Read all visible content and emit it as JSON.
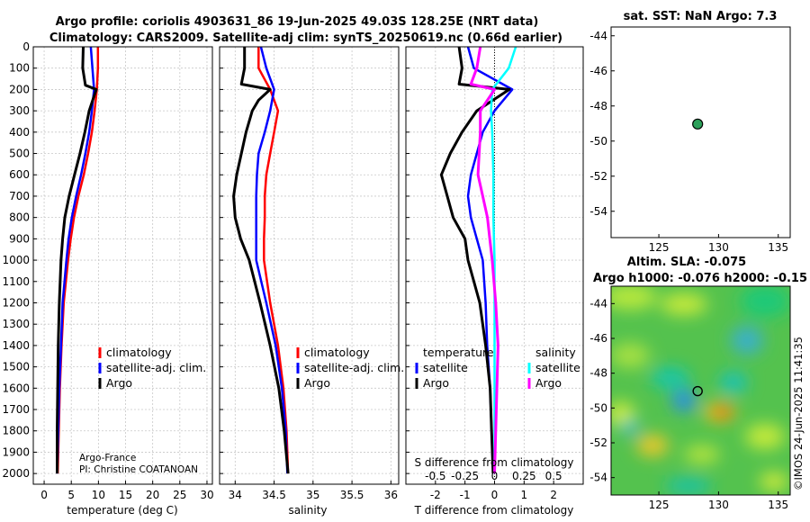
{
  "header": {
    "title_line1": "Argo profile: coriolis 4903631_86 19-Jun-2025 49.03S 128.25E (NRT data)",
    "title_line2": "Climatology: CARS2009. Satellite-adj clim: synTS_20250619.nc (0.66d earlier)"
  },
  "colors": {
    "climatology": "#ff0000",
    "satellite": "#0000ff",
    "argo": "#000000",
    "sal_satellite": "#00ffff",
    "sal_argo": "#ff00ff"
  },
  "credits": {
    "line1": "Argo-France",
    "line2": "PI: Christine COATANOAN"
  },
  "imos_stamp": "©IMOS 24-Jun-2025 11:41:35",
  "chart_data": [
    {
      "id": "temperature",
      "type": "line",
      "xlabel": "temperature (deg C)",
      "ylabel": "",
      "xlim": [
        -2,
        31
      ],
      "ylim": [
        0,
        2050
      ],
      "xticks": [
        0,
        5,
        10,
        15,
        20,
        25,
        30
      ],
      "yticks": [
        0,
        100,
        200,
        300,
        400,
        500,
        600,
        700,
        800,
        900,
        1000,
        1100,
        1200,
        1300,
        1400,
        1500,
        1600,
        1700,
        1800,
        1900,
        2000
      ],
      "legend": [
        "climatology",
        "satellite-adj. clim.",
        "Argo"
      ],
      "series": [
        {
          "name": "climatology",
          "color": "#ff0000",
          "depth": [
            0,
            100,
            200,
            300,
            400,
            500,
            600,
            700,
            800,
            900,
            1000,
            1200,
            1400,
            1600,
            1800,
            2000
          ],
          "values": [
            9.9,
            9.9,
            9.7,
            9.3,
            8.8,
            8.1,
            7.3,
            6.3,
            5.5,
            4.9,
            4.4,
            3.6,
            3.2,
            2.9,
            2.7,
            2.5
          ]
        },
        {
          "name": "satellite-adj. clim.",
          "color": "#0000ff",
          "depth": [
            0,
            100,
            200,
            300,
            400,
            500,
            600,
            700,
            800,
            900,
            1000,
            1200,
            1400,
            1600,
            1800,
            2000
          ],
          "values": [
            8.6,
            8.9,
            9.2,
            8.8,
            8.3,
            7.6,
            6.8,
            5.9,
            5.1,
            4.5,
            4.1,
            3.4,
            3.1,
            2.8,
            2.6,
            2.4
          ]
        },
        {
          "name": "Argo",
          "color": "#000000",
          "depth": [
            0,
            100,
            180,
            200,
            300,
            400,
            500,
            600,
            700,
            800,
            900,
            1000,
            1200,
            1400,
            1600,
            1800,
            2000
          ],
          "values": [
            7.2,
            7.1,
            7.6,
            9.6,
            8.3,
            7.5,
            6.6,
            5.6,
            4.6,
            3.8,
            3.4,
            3.1,
            2.8,
            2.6,
            2.5,
            2.4,
            2.4
          ]
        }
      ]
    },
    {
      "id": "salinity",
      "type": "line",
      "xlabel": "salinity",
      "ylabel": "",
      "xlim": [
        33.8,
        36.1
      ],
      "ylim": [
        0,
        2050
      ],
      "xticks": [
        34,
        34.5,
        35,
        35.5,
        36
      ],
      "legend": [
        "climatology",
        "satellite-adj. clim.",
        "Argo"
      ],
      "series": [
        {
          "name": "climatology",
          "color": "#ff0000",
          "depth": [
            0,
            100,
            200,
            300,
            400,
            500,
            600,
            700,
            800,
            900,
            1000,
            1200,
            1400,
            1600,
            1800,
            2000
          ],
          "values": [
            34.3,
            34.3,
            34.45,
            34.55,
            34.5,
            34.45,
            34.4,
            34.38,
            34.38,
            34.37,
            34.37,
            34.45,
            34.55,
            34.62,
            34.66,
            34.68
          ]
        },
        {
          "name": "satellite-adj. clim.",
          "color": "#0000ff",
          "depth": [
            0,
            100,
            200,
            300,
            400,
            500,
            600,
            700,
            800,
            900,
            1000,
            1200,
            1400,
            1600,
            1800,
            2000
          ],
          "values": [
            34.33,
            34.4,
            34.5,
            34.45,
            34.38,
            34.3,
            34.28,
            34.27,
            34.27,
            34.27,
            34.27,
            34.4,
            34.52,
            34.6,
            34.65,
            34.67
          ]
        },
        {
          "name": "Argo",
          "color": "#000000",
          "depth": [
            0,
            100,
            175,
            200,
            250,
            300,
            400,
            500,
            600,
            700,
            800,
            900,
            1000,
            1200,
            1400,
            1600,
            1800,
            2000
          ],
          "values": [
            34.12,
            34.12,
            34.08,
            34.45,
            34.3,
            34.22,
            34.14,
            34.08,
            34.02,
            33.98,
            34.0,
            34.07,
            34.18,
            34.32,
            34.45,
            34.56,
            34.63,
            34.68
          ]
        }
      ]
    },
    {
      "id": "difference",
      "type": "line",
      "xlabel": "T difference from climatology",
      "ylabel": "",
      "top_axis_label": "S difference from climatology",
      "xlim": [
        -3,
        3
      ],
      "ylim": [
        0,
        2050
      ],
      "xticks": [
        -2,
        -1,
        0,
        1,
        2
      ],
      "top_xticks": [
        -0.5,
        -0.25,
        0,
        0.25,
        0.5
      ],
      "top_xlim": [
        -0.75,
        0.75
      ],
      "legend_left_title": "temperature",
      "legend_left": [
        "satellite",
        "Argo"
      ],
      "legend_right_title": "salinity",
      "legend_right": [
        "satellite",
        "Argo"
      ],
      "series": [
        {
          "name": "T satellite",
          "color": "#0000ff",
          "depth": [
            0,
            100,
            200,
            300,
            400,
            500,
            600,
            700,
            800,
            900,
            1000,
            1200,
            1400,
            1600,
            1800,
            2000
          ],
          "values": [
            -0.9,
            -0.7,
            0.6,
            0.0,
            -0.4,
            -0.6,
            -0.8,
            -0.9,
            -0.8,
            -0.6,
            -0.4,
            -0.3,
            -0.25,
            -0.15,
            -0.1,
            -0.05
          ]
        },
        {
          "name": "T Argo",
          "color": "#000000",
          "depth": [
            0,
            100,
            175,
            200,
            300,
            400,
            500,
            600,
            700,
            800,
            900,
            1000,
            1200,
            1400,
            1600,
            1800,
            2000
          ],
          "values": [
            -1.2,
            -1.1,
            -1.2,
            0.5,
            -0.6,
            -1.1,
            -1.5,
            -1.8,
            -1.6,
            -1.4,
            -1.0,
            -0.9,
            -0.5,
            -0.3,
            -0.15,
            -0.1,
            -0.05
          ]
        },
        {
          "name": "S satellite",
          "color": "#00ffff",
          "depth": [
            0,
            100,
            200,
            300,
            400,
            600,
            800,
            1000,
            1200,
            1400,
            1600,
            1800,
            2000
          ],
          "values": [
            0.18,
            0.12,
            -0.02,
            -0.03,
            -0.02,
            -0.01,
            -0.01,
            0.0,
            0.0,
            0.0,
            0.0,
            0.0,
            0.0
          ]
        },
        {
          "name": "S Argo",
          "color": "#ff00ff",
          "depth": [
            0,
            100,
            175,
            200,
            300,
            400,
            500,
            600,
            700,
            800,
            900,
            1000,
            1200,
            1400,
            1600,
            1800,
            2000
          ],
          "values": [
            -0.12,
            -0.15,
            -0.2,
            0.0,
            -0.12,
            -0.12,
            -0.13,
            -0.14,
            -0.1,
            -0.06,
            -0.04,
            -0.02,
            0.01,
            0.03,
            0.02,
            0.01,
            0.0
          ]
        }
      ]
    },
    {
      "id": "sst_map",
      "type": "scatter",
      "title": "sat. SST: NaN Argo: 7.3",
      "xlim": [
        121,
        136
      ],
      "ylim": [
        -55.5,
        -43.5
      ],
      "xticks": [
        125,
        130,
        135
      ],
      "yticks": [
        -44,
        -46,
        -48,
        -50,
        -52,
        -54
      ],
      "x": [
        128.25
      ],
      "y": [
        -49.03
      ],
      "point_color": "#2ca05a"
    },
    {
      "id": "sla_map",
      "type": "heatmap",
      "title": "Altim. SLA: -0.075",
      "subtitle": "Argo h1000: -0.076 h2000: -0.15",
      "xlim": [
        121,
        136
      ],
      "ylim": [
        -55,
        -43
      ],
      "xticks": [
        125,
        130,
        135
      ],
      "yticks": [
        -44,
        -46,
        -48,
        -50,
        -52,
        -54
      ],
      "x": [
        128.25
      ],
      "y": [
        -49.03
      ]
    }
  ]
}
